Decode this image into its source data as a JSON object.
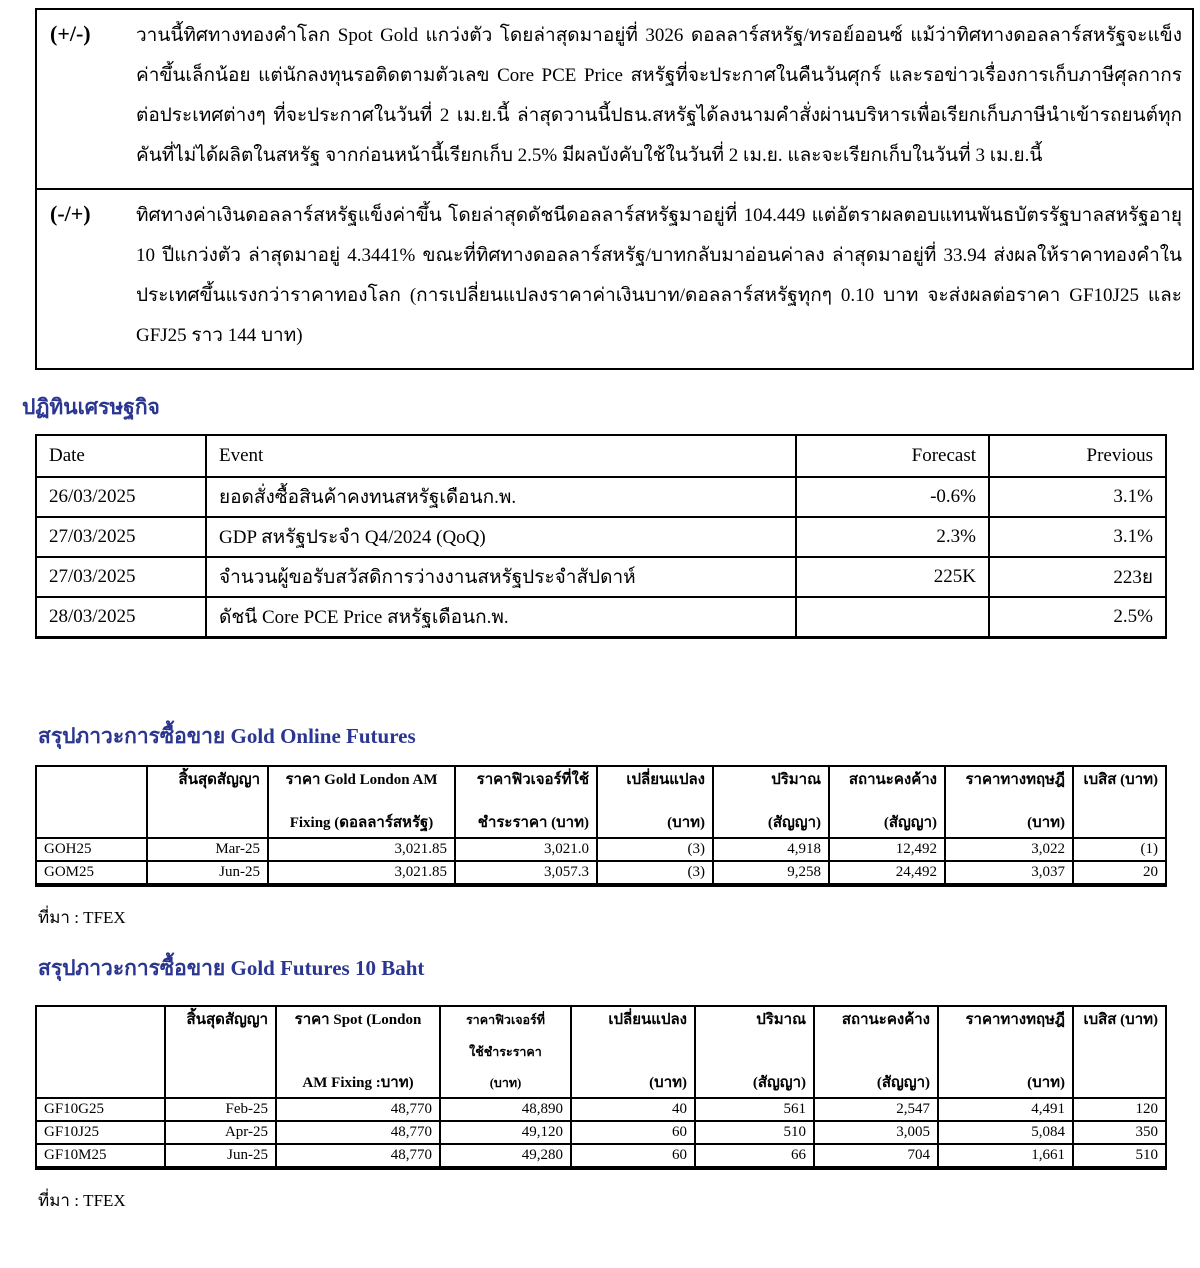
{
  "colors": {
    "heading_blue": "#2B3690",
    "text": "#000000",
    "background": "#FFFFFF"
  },
  "commentary": {
    "rows": [
      {
        "label": "(+/-)",
        "text": "วานนี้ทิศทางทองคำโลก Spot Gold แกว่งตัว โดยล่าสุดมาอยู่ที่ 3026 ดอลลาร์สหรัฐ/ทรอย์ออนซ์ แม้ว่าทิศทางดอลลาร์สหรัฐจะแข็งค่าขึ้นเล็กน้อย แต่นักลงทุนรอติดตามตัวเลข Core PCE Price สหรัฐที่จะประกาศในคืนวันศุกร์ และรอข่าวเรื่องการเก็บภาษีศุลกากรต่อประเทศต่างๆ ที่จะประกาศในวันที่ 2 เม.ย.นี้ ล่าสุดวานนี้ปธน.สหรัฐได้ลงนามคำสั่งผ่านบริหารเพื่อเรียกเก็บภาษีนำเข้ารถยนต์ทุกคันที่ไม่ได้ผลิตในสหรัฐ จากก่อนหน้านี้เรียกเก็บ 2.5% มีผลบังคับใช้ในวันที่ 2 เม.ย. และจะเรียกเก็บในวันที่ 3 เม.ย.นี้"
      },
      {
        "label": "(-/+)",
        "text": "ทิศทางค่าเงินดอลลาร์สหรัฐแข็งค่าขึ้น โดยล่าสุดดัชนีดอลลาร์สหรัฐมาอยู่ที่ 104.449 แต่อัตราผลตอบแทนพันธบัตรรัฐบาลสหรัฐอายุ 10 ปีแกว่งตัว ล่าสุดมาอยู่ 4.3441% ขณะที่ทิศทางดอลลาร์สหรัฐ/บาทกลับมาอ่อนค่าลง ล่าสุดมาอยู่ที่ 33.94 ส่งผลให้ราคาทองคำในประเทศขึ้นแรงกว่าราคาทองโลก (การเปลี่ยนแปลงราคาค่าเงินบาท/ดอลลาร์สหรัฐทุกๆ 0.10 บาท จะส่งผลต่อราคา GF10J25 และ GFJ25 ราว 144 บาท)"
      }
    ]
  },
  "calendar": {
    "title": "ปฏิทินเศรษฐกิจ",
    "headers": [
      "Date",
      "Event",
      "Forecast",
      "Previous"
    ],
    "rows": [
      [
        "26/03/2025",
        "ยอดสั่งซื้อสินค้าคงทนสหรัฐเดือนก.พ.",
        "-0.6%",
        "3.1%"
      ],
      [
        "27/03/2025",
        "GDP สหรัฐประจำ Q4/2024 (QoQ)",
        "2.3%",
        "3.1%"
      ],
      [
        "27/03/2025",
        "จำนวนผู้ขอรับสวัสดิการว่างงานสหรัฐประจำสัปดาห์",
        "225K",
        "223ย"
      ],
      [
        "28/03/2025",
        "ดัชนี Core PCE Price สหรัฐเดือนก.พ.",
        "",
        "2.5%"
      ]
    ]
  },
  "gold_online": {
    "title": "สรุปภาวะการซื้อขาย Gold Online Futures",
    "headers": [
      [
        ""
      ],
      [
        "สิ้นสุดสัญญา"
      ],
      [
        "ราคา Gold London AM",
        "Fixing (ดอลลาร์สหรัฐ)"
      ],
      [
        "ราคาฟิวเจอร์ที่ใช้",
        "ชำระราคา (บาท)"
      ],
      [
        "เปลี่ยนแปลง",
        "(บาท)"
      ],
      [
        "ปริมาณ",
        "(สัญญา)"
      ],
      [
        "สถานะคงค้าง",
        "(สัญญา)"
      ],
      [
        "ราคาทางทฤษฎี",
        "(บาท)"
      ],
      [
        "เบสิส (บาท)"
      ]
    ],
    "rows": [
      [
        "GOH25",
        "Mar-25",
        "3,021.85",
        "3,021.0",
        "(3)",
        "4,918",
        "12,492",
        "3,022",
        "(1)"
      ],
      [
        "GOM25",
        "Jun-25",
        "3,021.85",
        "3,057.3",
        "(3)",
        "9,258",
        "24,492",
        "3,037",
        "20"
      ]
    ],
    "source": "ที่มา : TFEX"
  },
  "gold_10baht": {
    "title": "สรุปภาวะการซื้อขาย Gold Futures 10 Baht",
    "headers": [
      [
        ""
      ],
      [
        "สิ้นสุดสัญญา"
      ],
      [
        "ราคา Spot (London",
        "AM Fixing :บาท)"
      ],
      [
        "ราคาฟิวเจอร์ที่",
        "ใช้ชำระราคา",
        "(บาท)"
      ],
      [
        "เปลี่ยนแปลง",
        "(บาท)"
      ],
      [
        "ปริมาณ",
        "(สัญญา)"
      ],
      [
        "สถานะคงค้าง",
        "(สัญญา)"
      ],
      [
        "ราคาทางทฤษฎี",
        "(บาท)"
      ],
      [
        "เบสิส (บาท)"
      ]
    ],
    "rows": [
      [
        "GF10G25",
        "Feb-25",
        "48,770",
        "48,890",
        "40",
        "561",
        "2,547",
        "4,491",
        "120"
      ],
      [
        "GF10J25",
        "Apr-25",
        "48,770",
        "49,120",
        "60",
        "510",
        "3,005",
        "5,084",
        "350"
      ],
      [
        "GF10M25",
        "Jun-25",
        "48,770",
        "49,280",
        "60",
        "66",
        "704",
        "1,661",
        "510"
      ]
    ],
    "source": "ที่มา : TFEX"
  }
}
